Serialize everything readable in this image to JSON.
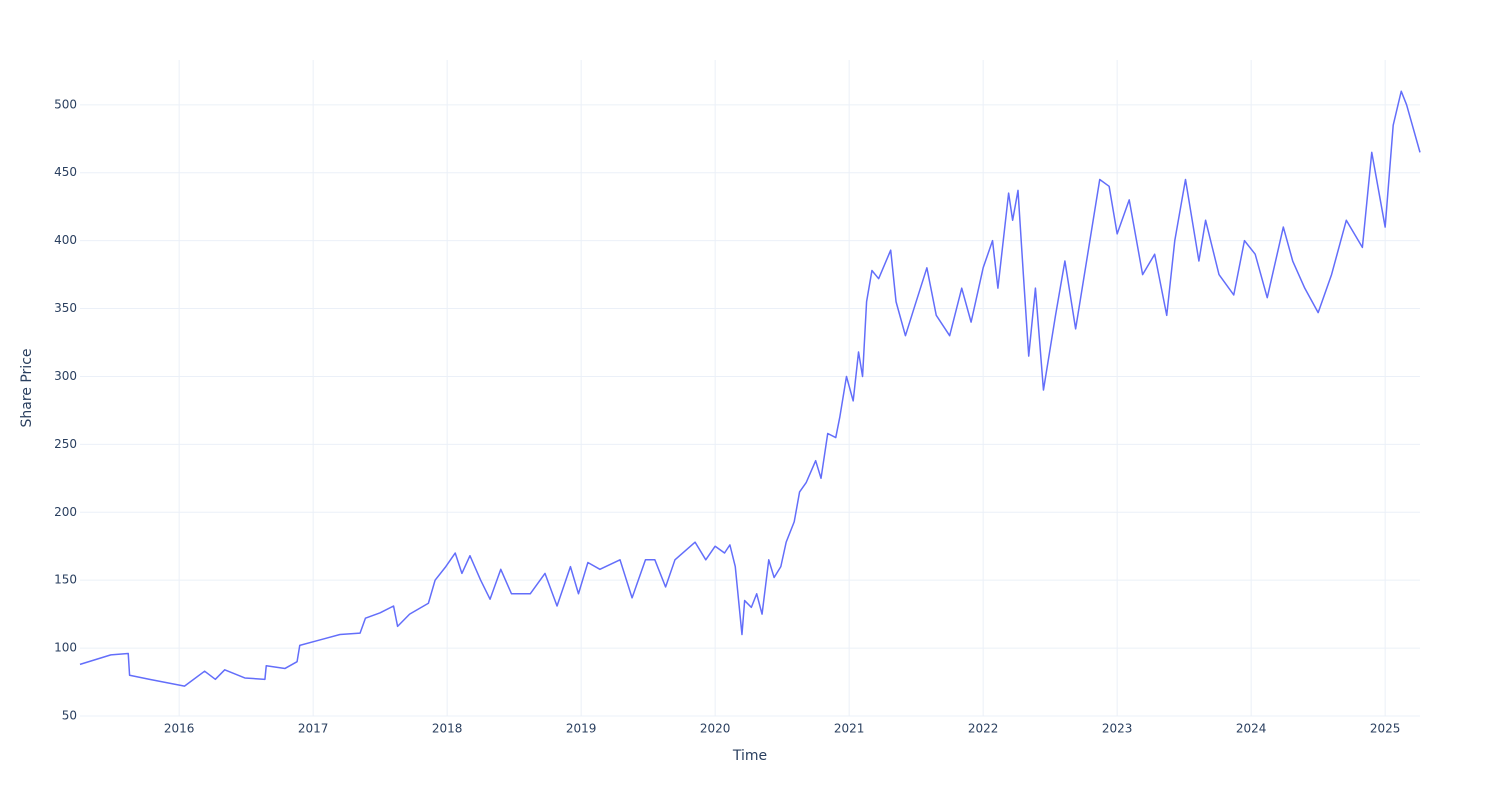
{
  "chart_data": {
    "type": "line",
    "x_label": "Time",
    "y_label": "Share Price",
    "color": "#636efa",
    "grid": true,
    "x": [
      2015.26,
      2015.49,
      2015.62,
      2015.63,
      2015.78,
      2016.04,
      2016.19,
      2016.27,
      2016.34,
      2016.49,
      2016.64,
      2016.65,
      2016.79,
      2016.88,
      2016.9,
      2017.05,
      2017.2,
      2017.35,
      2017.39,
      2017.5,
      2017.6,
      2017.63,
      2017.72,
      2017.86,
      2017.91,
      2017.99,
      2018.06,
      2018.11,
      2018.17,
      2018.25,
      2018.32,
      2018.4,
      2018.48,
      2018.62,
      2018.73,
      2018.82,
      2018.92,
      2018.98,
      2019.05,
      2019.14,
      2019.29,
      2019.38,
      2019.48,
      2019.55,
      2019.63,
      2019.7,
      2019.85,
      2019.93,
      2020.0,
      2020.07,
      2020.11,
      2020.15,
      2020.2,
      2020.22,
      2020.27,
      2020.31,
      2020.35,
      2020.4,
      2020.44,
      2020.49,
      2020.53,
      2020.59,
      2020.63,
      2020.68,
      2020.75,
      2020.79,
      2020.84,
      2020.9,
      2020.93,
      2020.98,
      2021.03,
      2021.07,
      2021.1,
      2021.13,
      2021.17,
      2021.22,
      2021.31,
      2021.35,
      2021.42,
      2021.49,
      2021.58,
      2021.65,
      2021.75,
      2021.84,
      2021.91,
      2022.0,
      2022.07,
      2022.11,
      2022.19,
      2022.22,
      2022.26,
      2022.3,
      2022.34,
      2022.39,
      2022.45,
      2022.54,
      2022.61,
      2022.69,
      2022.78,
      2022.87,
      2022.94,
      2023.0,
      2023.09,
      2023.19,
      2023.28,
      2023.37,
      2023.43,
      2023.51,
      2023.61,
      2023.66,
      2023.76,
      2023.87,
      2023.95,
      2024.03,
      2024.12,
      2024.24,
      2024.31,
      2024.4,
      2024.5,
      2024.6,
      2024.71,
      2024.83,
      2024.9,
      2025.0,
      2025.06,
      2025.12,
      2025.16,
      2025.26
    ],
    "values": [
      88,
      95,
      96,
      80,
      77,
      72,
      83,
      77,
      84,
      78,
      77,
      87,
      85,
      90,
      102,
      106,
      110,
      111,
      122,
      126,
      131,
      116,
      125,
      133,
      150,
      160,
      170,
      155,
      168,
      150,
      136,
      158,
      140,
      140,
      155,
      131,
      160,
      140,
      163,
      158,
      165,
      137,
      165,
      165,
      145,
      165,
      178,
      165,
      175,
      170,
      176,
      160,
      110,
      135,
      130,
      140,
      125,
      165,
      152,
      160,
      178,
      193,
      215,
      222,
      238,
      225,
      258,
      255,
      270,
      300,
      282,
      318,
      300,
      355,
      378,
      372,
      393,
      355,
      330,
      352,
      380,
      345,
      330,
      365,
      340,
      380,
      400,
      365,
      435,
      415,
      437,
      375,
      315,
      365,
      290,
      345,
      385,
      335,
      390,
      445,
      440,
      405,
      430,
      375,
      390,
      345,
      400,
      445,
      385,
      415,
      375,
      360,
      400,
      390,
      358,
      410,
      385,
      365,
      347,
      375,
      415,
      395,
      465,
      410,
      485,
      510,
      500,
      465
    ],
    "xlim": [
      2015.26,
      2025.26
    ],
    "xticks": [
      2016,
      2017,
      2018,
      2019,
      2020,
      2021,
      2022,
      2023,
      2024,
      2025
    ],
    "ylim": [
      50,
      533
    ],
    "yticks": [
      50,
      100,
      150,
      200,
      250,
      300,
      350,
      400,
      450,
      500
    ]
  }
}
